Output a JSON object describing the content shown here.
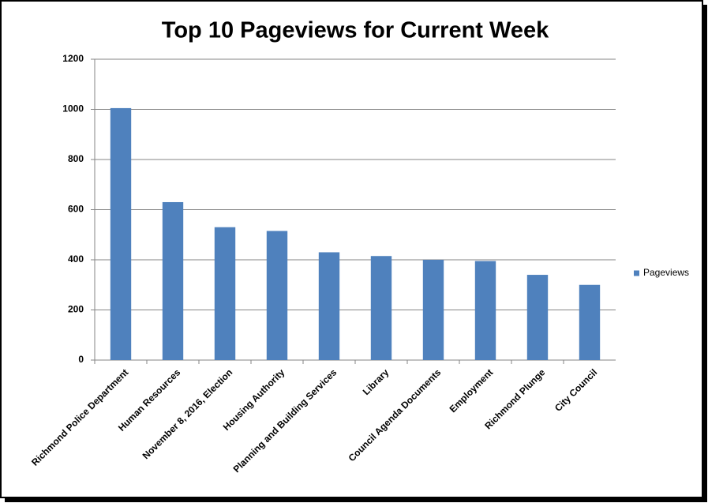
{
  "chart_data": {
    "type": "bar",
    "title": "Top 10 Pageviews for Current Week",
    "categories": [
      "Richmond Police Department",
      "Human Resources",
      "November 8, 2016, Election",
      "Housing Authority",
      "Planning and Building Services",
      "Library",
      "Council Agenda Documents",
      "Employment",
      "Richmond Plunge",
      "City Council"
    ],
    "series": [
      {
        "name": "Pageviews",
        "color": "#4f81bd",
        "values": [
          1005,
          630,
          530,
          515,
          430,
          415,
          400,
          395,
          340,
          300
        ]
      }
    ],
    "ylim": [
      0,
      1200
    ],
    "yticks": [
      0,
      200,
      400,
      600,
      800,
      1000,
      1200
    ],
    "grid": true,
    "legend": "right"
  }
}
